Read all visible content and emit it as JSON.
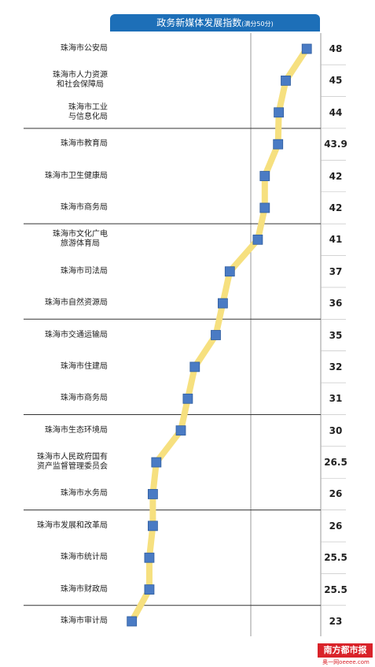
{
  "chart_data": {
    "type": "line",
    "title": "政务新媒体发展指数",
    "subtitle": "(满分50分)",
    "categories": [
      "珠海市公安局",
      "珠海市人力资源\n和社会保障局",
      "珠海市工业\n与信息化局",
      "珠海市教育局",
      "珠海市卫生健康局",
      "珠海市商务局",
      "珠海市文化广电\n旅游体育局",
      "珠海市司法局",
      "珠海市自然资源局",
      "珠海市交通运输局",
      "珠海市住建局",
      "珠海市商务局",
      "珠海市生态环境局",
      "珠海市人民政府国有\n资产监督管理委员会",
      "珠海市水务局",
      "珠海市发展和改革局",
      "珠海市统计局",
      "珠海市财政局",
      "珠海市审计局"
    ],
    "values": [
      48,
      45,
      44,
      43.9,
      42,
      42,
      41,
      37,
      36,
      35,
      32,
      31,
      30,
      26.5,
      26,
      26,
      25.5,
      25.5,
      23
    ],
    "line_color": "#f6e07f",
    "marker_color": "#4a7bc4",
    "xlim": [
      20,
      50
    ],
    "xticks": [
      40
    ],
    "grid": true
  },
  "branding": {
    "paper": "南方都市报",
    "site": "奥一网oeeee.com"
  }
}
